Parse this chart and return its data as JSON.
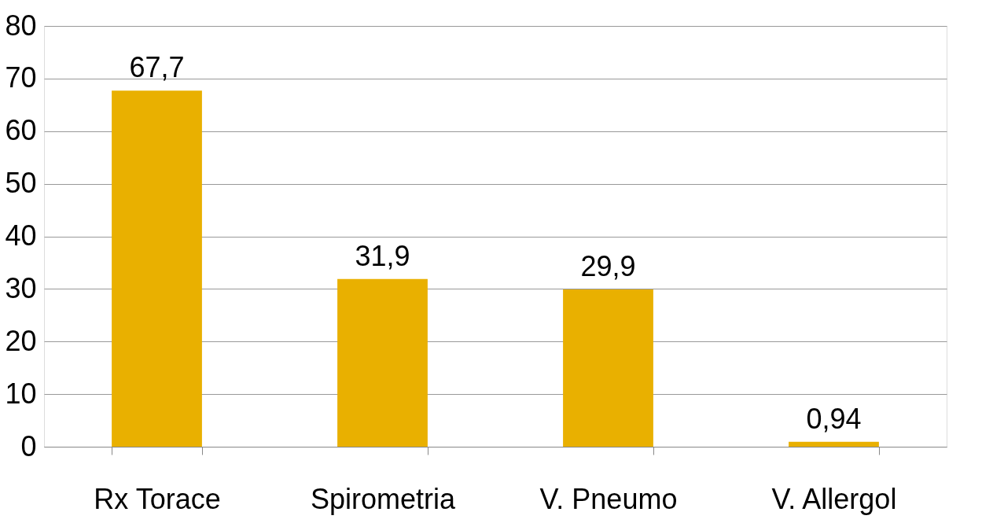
{
  "chart_data": {
    "type": "bar",
    "categories": [
      "Rx Torace",
      "Spirometria",
      "V. Pneumo",
      "V. Allergol"
    ],
    "values": [
      67.7,
      31.9,
      29.9,
      0.94
    ],
    "value_labels": [
      "67,7",
      "31,9",
      "29,9",
      "0,94"
    ],
    "color": "#e9b000",
    "ylim": [
      0,
      80
    ],
    "yticks": [
      0,
      10,
      20,
      30,
      40,
      50,
      60,
      70,
      80
    ],
    "grid": "y"
  }
}
